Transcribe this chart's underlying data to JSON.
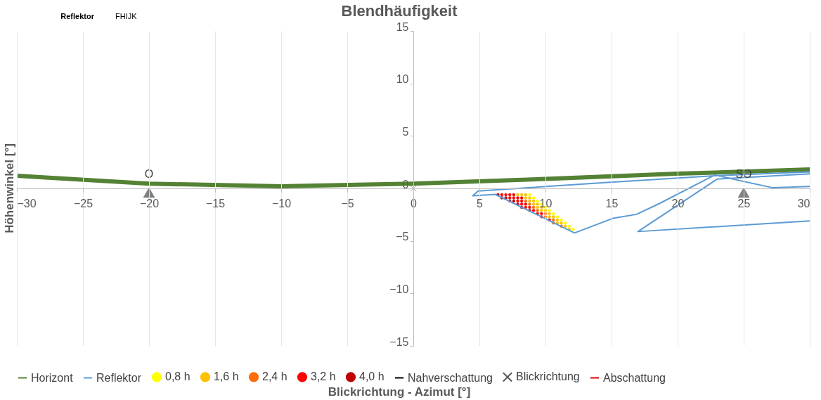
{
  "chart_data": {
    "type": "line",
    "title": "Blendhäufigkeit",
    "xlabel": "Blickrichtung - Azimut [°]",
    "ylabel": "Höhenwinkel [°]",
    "xlim": [
      -30,
      30
    ],
    "xticks": [
      -30,
      -25,
      -20,
      -15,
      -10,
      -5,
      0,
      5,
      10,
      15,
      20,
      25,
      30
    ],
    "ylim": [
      -15,
      15
    ],
    "yticks": [
      -15,
      -10,
      -5,
      0,
      5,
      10,
      15
    ],
    "grid": "x",
    "legend": "bottom",
    "annotations": [
      "Reflektor",
      "FHIJK"
    ],
    "series": [
      {
        "name": "Horizont",
        "marker": "none",
        "color": "#548235",
        "x": [
          -30,
          -20,
          -10,
          0,
          10,
          20,
          30
        ],
        "values": [
          1.2,
          0.45,
          0.2,
          0.45,
          0.9,
          1.4,
          1.8
        ]
      },
      {
        "name": "Reflektor",
        "marker": "none",
        "color": "#5b9bd5",
        "x": [
          30,
          27.2,
          22.8,
          18.7,
          16.9,
          15.1,
          12.2,
          6.2,
          4.5,
          4.9,
          14.7,
          22.8,
          30,
          30,
          23.0,
          17.0,
          30
        ],
        "values": [
          0.19,
          0.06,
          1.27,
          -1.39,
          -2.47,
          -2.85,
          -4.24,
          -0.57,
          -0.7,
          -0.25,
          0.57,
          1.2,
          1.58,
          1.39,
          0.89,
          -4.11,
          -3.1
        ]
      },
      {
        "name": "0,8 h",
        "type": "scatter",
        "marker": "circle",
        "color": "#ffff00",
        "x": [
          8.8,
          9.1,
          9.4,
          9.7,
          10.0,
          10.3,
          10.6,
          10.9,
          11.2,
          11.5,
          11.8,
          12.1
        ],
        "values": [
          -0.6,
          -0.9,
          -1.2,
          -1.5,
          -1.8,
          -2.1,
          -2.4,
          -2.7,
          -3.0,
          -3.3,
          -3.6,
          -3.9
        ]
      },
      {
        "name": "1,6 h",
        "type": "scatter",
        "marker": "circle",
        "color": "#ffc000",
        "x": [
          7.9,
          8.2,
          8.5,
          8.5,
          8.8,
          8.8,
          9.1,
          9.1,
          9.4,
          9.4,
          9.7,
          9.7,
          10.0,
          10.3,
          10.3,
          10.6,
          10.9,
          10.9,
          11.2,
          11.5,
          11.8
        ],
        "values": [
          -0.6,
          -0.6,
          -0.6,
          -0.9,
          -0.9,
          -1.2,
          -1.2,
          -1.5,
          -1.5,
          -1.8,
          -1.8,
          -2.1,
          -2.1,
          -2.4,
          -2.7,
          -2.7,
          -3.0,
          -3.3,
          -3.3,
          -3.6,
          -3.9
        ]
      },
      {
        "name": "2,4 h",
        "type": "scatter",
        "marker": "circle",
        "color": "#ff6d0a",
        "x": [
          8.5,
          8.8,
          9.1,
          9.4,
          10.0,
          10.0,
          10.6,
          10.6,
          11.2
        ],
        "values": [
          -1.2,
          -1.5,
          -1.8,
          -2.1,
          -2.4,
          -2.7,
          -3.0,
          -3.3,
          -3.6
        ]
      },
      {
        "name": "3,2 h",
        "type": "scatter",
        "marker": "circle",
        "color": "#ff0000",
        "x": [
          6.7,
          7.0,
          7.3,
          7.6,
          7.3,
          7.6,
          7.9,
          8.2,
          7.9,
          8.2,
          8.2,
          8.5,
          8.5,
          8.8,
          9.1,
          9.4,
          9.7,
          9.7,
          10.3
        ],
        "values": [
          -0.6,
          -0.6,
          -0.6,
          -0.6,
          -0.9,
          -0.9,
          -0.9,
          -0.9,
          -1.2,
          -1.2,
          -1.5,
          -1.5,
          -1.8,
          -1.8,
          -2.1,
          -2.4,
          -2.4,
          -2.7,
          -3.0
        ]
      },
      {
        "name": "4,0 h",
        "type": "scatter",
        "marker": "circle",
        "color": "#c00000",
        "x": [
          6.4,
          6.7,
          7.0,
          7.3,
          7.6,
          7.9,
          8.2,
          8.8
        ],
        "values": [
          -0.6,
          -0.9,
          -0.9,
          -1.2,
          -1.2,
          -1.5,
          -1.8,
          -2.1
        ]
      },
      {
        "name": "Nahverschattung",
        "marker": "none",
        "color": "#000000"
      },
      {
        "name": "Blickrichtung",
        "type": "scatter",
        "marker": "cross",
        "color": "#595959",
        "x": [
          0
        ],
        "values": [
          0
        ]
      },
      {
        "name": "Abschattung",
        "marker": "none",
        "color": "#e00000"
      },
      {
        "type": "scatter",
        "marker": "triangle",
        "color": "#7f7f7f",
        "x": [
          -20,
          25
        ],
        "values": [
          -0.4,
          -0.4
        ],
        "value_labels": [
          "O",
          "SO"
        ]
      }
    ]
  }
}
